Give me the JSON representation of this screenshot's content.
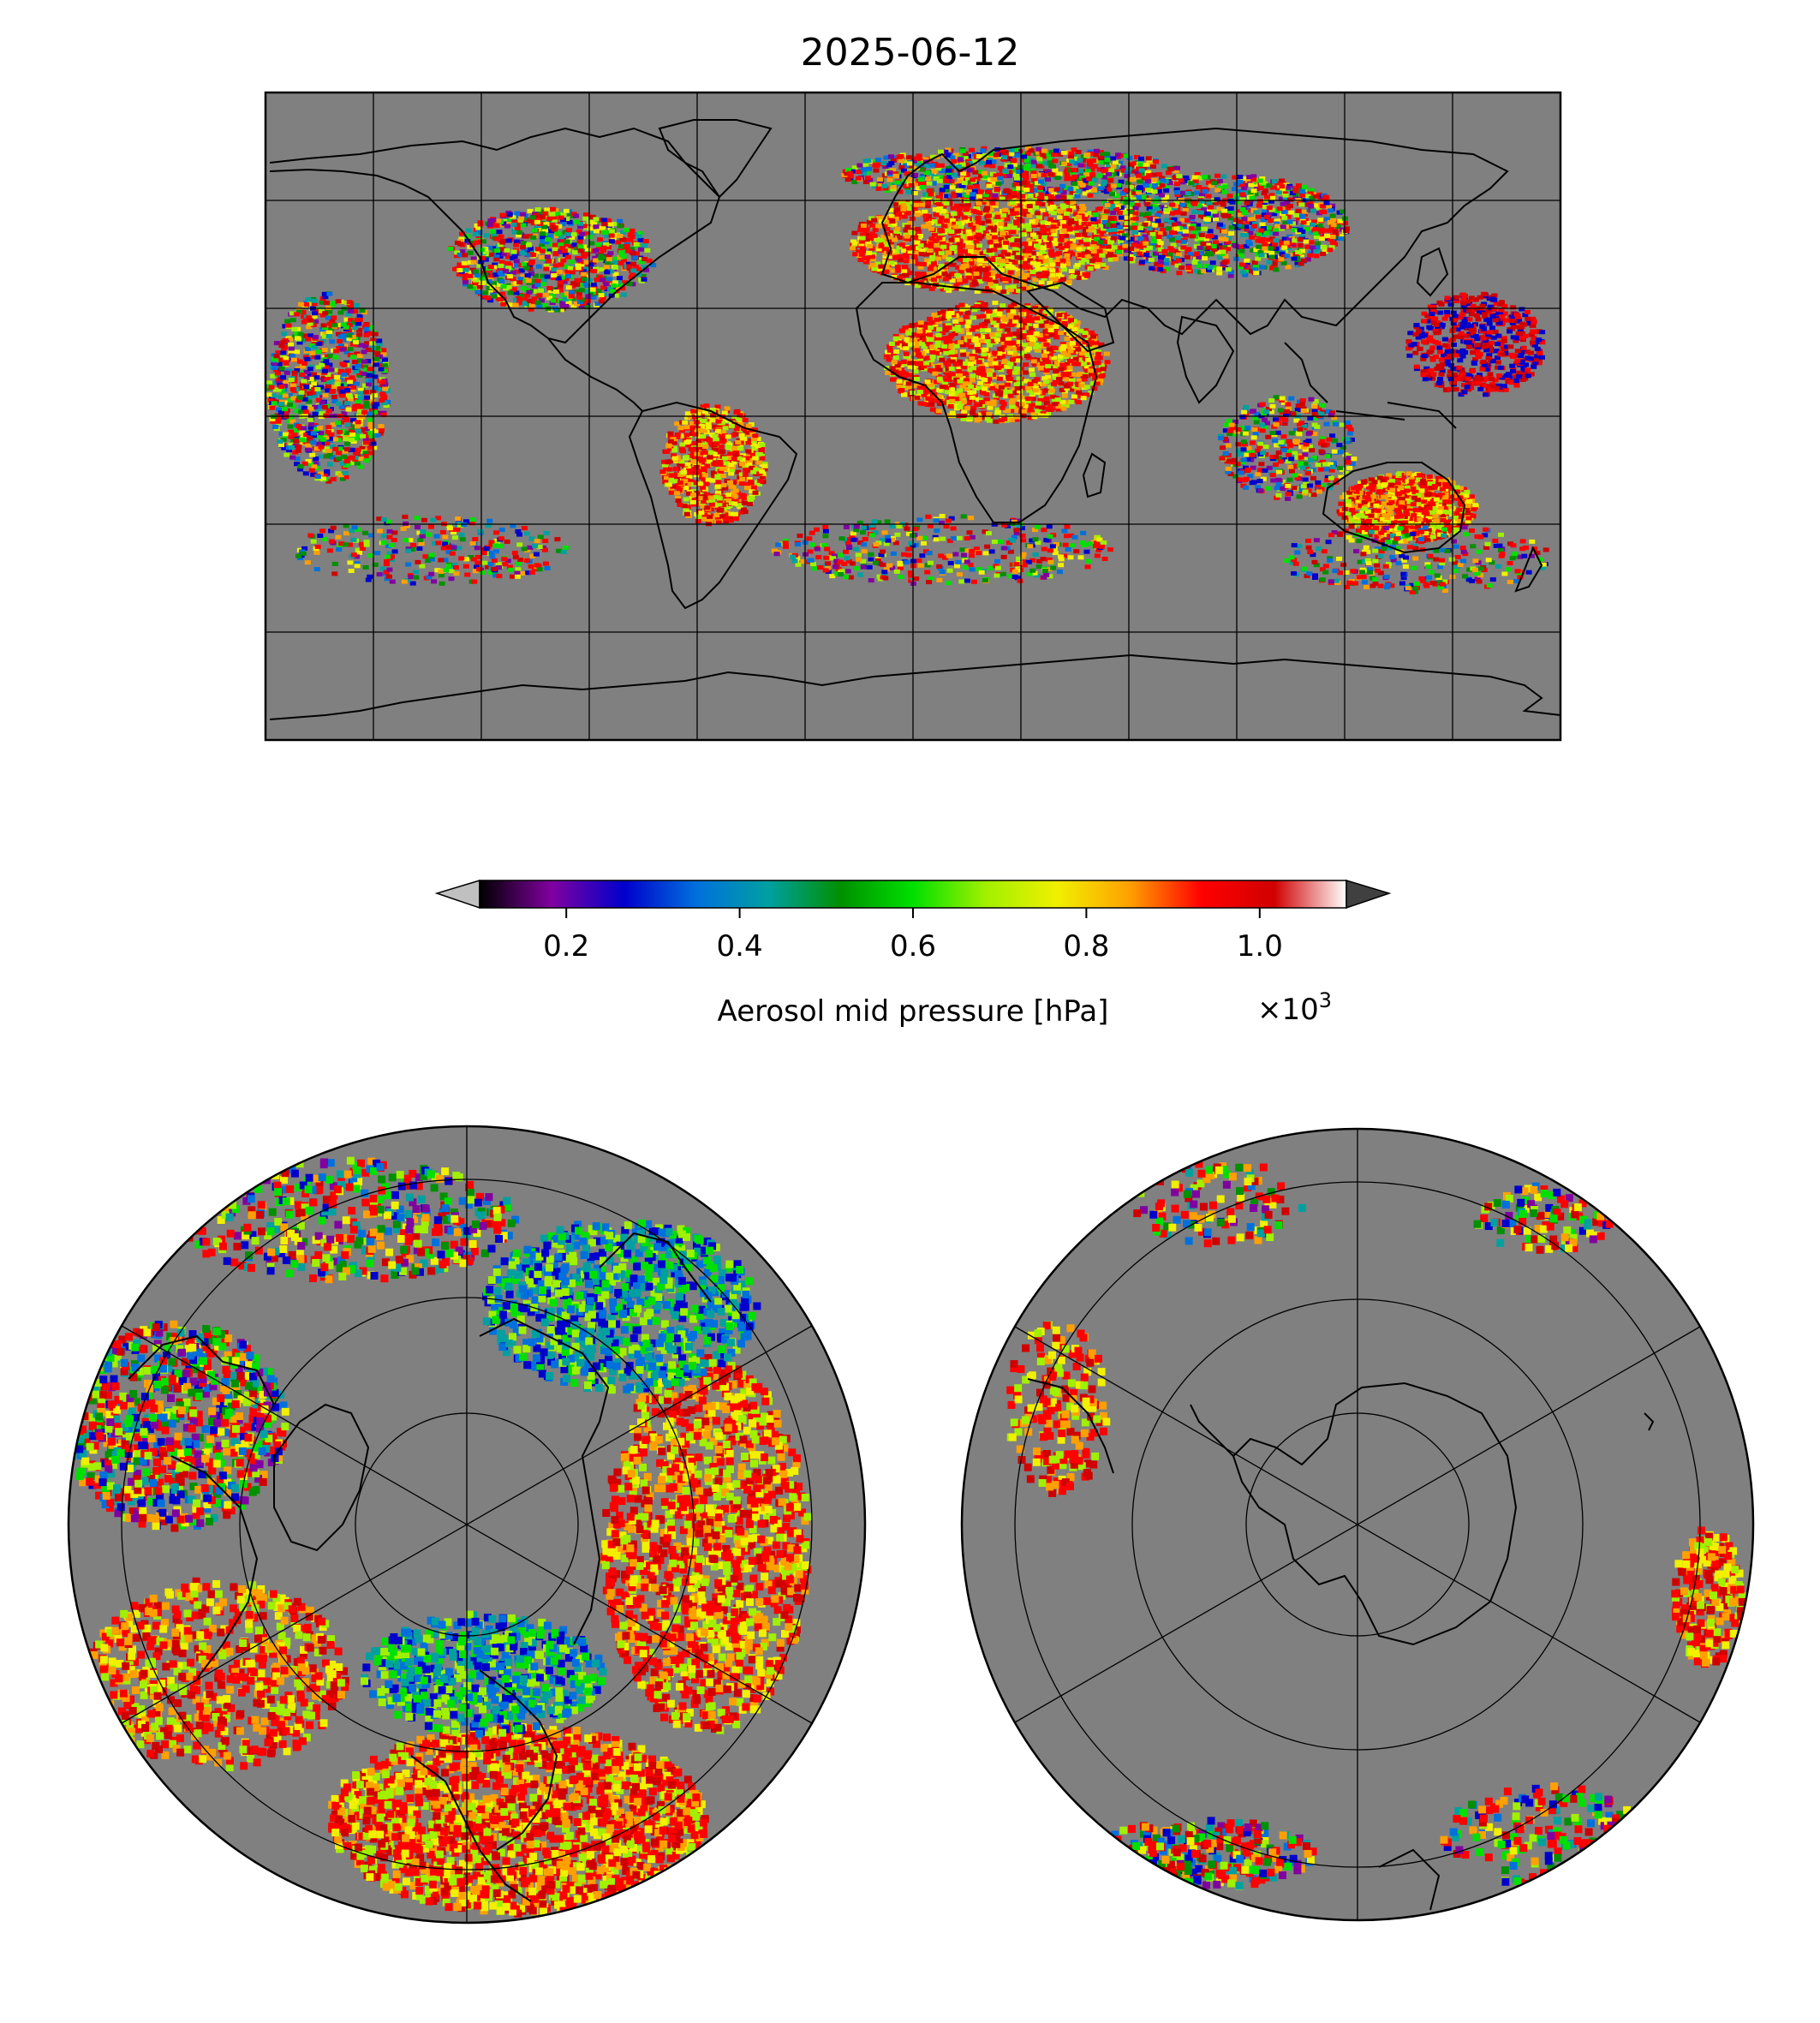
{
  "title": "2025-06-12",
  "colorbar": {
    "label": "Aerosol mid pressure [hPa]",
    "multiplier_base": "×10",
    "multiplier_exp": "3",
    "vmin": 0.1,
    "vmax": 1.1,
    "ticks": [
      {
        "value": 0.2,
        "label": "0.2"
      },
      {
        "value": 0.4,
        "label": "0.4"
      },
      {
        "value": 0.6,
        "label": "0.6"
      },
      {
        "value": 0.8,
        "label": "0.8"
      },
      {
        "value": 1.0,
        "label": "1.0"
      }
    ],
    "colors": [
      "#000000",
      "#8000a0",
      "#0000cc",
      "#0070dd",
      "#00a0a0",
      "#009000",
      "#00e000",
      "#a0f000",
      "#f0f000",
      "#ffa000",
      "#ff0000",
      "#d00000",
      "#ffffff"
    ],
    "under_color": "#c0c0c0",
    "over_color": "#404040"
  },
  "maps": {
    "background": "#808080",
    "coastline_color": "#000000",
    "gridline_color": "#000000",
    "panels": [
      "global-plate-carree",
      "north-polar-stereographic",
      "south-polar-stereographic"
    ]
  }
}
